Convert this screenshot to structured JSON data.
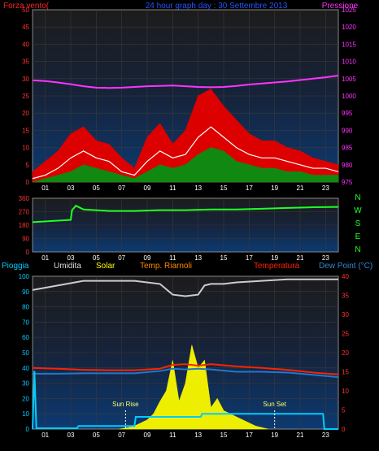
{
  "chart_data": [
    {
      "type": "line",
      "title": "24 hour graph day : 30 Settembre 2013",
      "x_ticks": [
        "01",
        "03",
        "05",
        "07",
        "09",
        "11",
        "13",
        "15",
        "17",
        "19",
        "21",
        "23"
      ],
      "left_axis": {
        "label": "Forza vento(",
        "ticks": [
          "0",
          "5",
          "10",
          "15",
          "20",
          "25",
          "30",
          "35",
          "40",
          "45",
          "50"
        ],
        "ylim": [
          0,
          50
        ]
      },
      "right_axis": {
        "label": "Pressione",
        "ticks": [
          "975",
          "980",
          "985",
          "990",
          "995",
          "1000",
          "1005",
          "1010",
          "1015",
          "1020",
          "1025"
        ],
        "ylim": [
          975,
          1025
        ]
      },
      "series": [
        {
          "name": "Pressione",
          "color": "#ff33ff",
          "axis": "right",
          "x": [
            0,
            1,
            2,
            3,
            4,
            5,
            6,
            7,
            8,
            9,
            10,
            11,
            12,
            13,
            14,
            15,
            16,
            17,
            18,
            19,
            20,
            21,
            22,
            23,
            24
          ],
          "y": [
            1004.5,
            1004.3,
            1003.9,
            1003.4,
            1002.8,
            1002.4,
            1002.3,
            1002.4,
            1002.6,
            1002.8,
            1002.9,
            1003.0,
            1002.8,
            1002.6,
            1002.5,
            1002.6,
            1002.9,
            1003.3,
            1003.6,
            1003.9,
            1004.2,
            1004.6,
            1005.0,
            1005.4,
            1005.9
          ]
        },
        {
          "color": "#ff0000",
          "axis": "left",
          "x": [
            0,
            1,
            2,
            3,
            4,
            5,
            6,
            7,
            8,
            9,
            10,
            11,
            12,
            13,
            14,
            15,
            16,
            17,
            18,
            19,
            20,
            21,
            22,
            23,
            24
          ],
          "y": [
            3,
            6,
            9,
            14,
            16,
            12,
            11,
            7,
            4,
            13,
            17,
            11,
            15,
            25,
            27,
            22,
            18,
            14,
            12,
            12,
            10,
            9,
            7,
            6,
            5
          ]
        },
        {
          "color": "#ffffff",
          "axis": "left",
          "x": [
            0,
            1,
            2,
            3,
            4,
            5,
            6,
            7,
            8,
            9,
            10,
            11,
            12,
            13,
            14,
            15,
            16,
            17,
            18,
            19,
            20,
            21,
            22,
            23,
            24
          ],
          "y": [
            1,
            2,
            4,
            7,
            9,
            7,
            6,
            3,
            2,
            6,
            9,
            7,
            8,
            13,
            16,
            13,
            10,
            8,
            7,
            7,
            6,
            5,
            4,
            4,
            3
          ]
        },
        {
          "color": "#00aa00",
          "axis": "left",
          "x": [
            0,
            1,
            2,
            3,
            4,
            5,
            6,
            7,
            8,
            9,
            10,
            11,
            12,
            13,
            14,
            15,
            16,
            17,
            18,
            19,
            20,
            21,
            22,
            23,
            24
          ],
          "y": [
            0,
            1,
            2,
            3,
            5,
            4,
            3,
            2,
            1,
            3,
            5,
            4,
            5,
            8,
            10,
            9,
            6,
            5,
            4,
            4,
            3,
            3,
            2,
            2,
            2
          ]
        }
      ]
    },
    {
      "type": "line",
      "x_ticks": [
        "01",
        "03",
        "05",
        "07",
        "09",
        "11",
        "13",
        "15",
        "17",
        "19",
        "21",
        "23"
      ],
      "left_axis": {
        "ticks": [
          "0",
          "90",
          "180",
          "270",
          "360"
        ],
        "ylim": [
          0,
          360
        ]
      },
      "right_labels": [
        "N",
        "W",
        "S",
        "E",
        "N"
      ],
      "series": [
        {
          "color": "#22ff22",
          "x": [
            0,
            3,
            3.1,
            3.4,
            4,
            6,
            8,
            10,
            12,
            14,
            16,
            18,
            20,
            22,
            24
          ],
          "y": [
            200,
            215,
            280,
            310,
            285,
            275,
            275,
            280,
            280,
            285,
            285,
            290,
            295,
            300,
            302
          ]
        }
      ]
    },
    {
      "type": "line",
      "legend": [
        "Pioggia",
        "Umidita",
        "Solar",
        "Temp. Riarnoli",
        "Temperatura",
        "Dew Point (°C)"
      ],
      "x_ticks": [
        "01",
        "03",
        "05",
        "07",
        "09",
        "11",
        "13",
        "15",
        "17",
        "19",
        "21",
        "23"
      ],
      "left_axis": {
        "ticks": [
          "0",
          "10",
          "20",
          "30",
          "40",
          "50",
          "60",
          "70",
          "80",
          "90",
          "100"
        ],
        "ylim": [
          0,
          100
        ]
      },
      "right_axis": {
        "ticks": [
          "0",
          "5",
          "10",
          "15",
          "20",
          "25",
          "30",
          "35",
          "40"
        ],
        "ylim": [
          0,
          40
        ]
      },
      "annotations": [
        {
          "text": "Sun Rise",
          "x": 7.3
        },
        {
          "text": "Sun Set",
          "x": 19.0
        }
      ],
      "series": [
        {
          "name": "Umidita",
          "color": "#cccccc",
          "axis": "left",
          "x": [
            0,
            2,
            4,
            6,
            8,
            10,
            11,
            12,
            13,
            13.5,
            14,
            15,
            16,
            18,
            20,
            22,
            24
          ],
          "y": [
            91,
            94,
            97,
            97,
            97,
            95,
            88,
            87,
            88,
            94,
            95,
            95,
            96,
            97,
            98,
            98,
            98
          ]
        },
        {
          "name": "Temperatura",
          "color": "#ff2200",
          "axis": "right",
          "x": [
            0,
            2,
            4,
            6,
            8,
            10,
            11,
            12,
            13,
            14,
            16,
            18,
            20,
            22,
            24
          ],
          "y": [
            16,
            15.8,
            15.5,
            15.4,
            15.4,
            15.8,
            16.8,
            17,
            16.6,
            17,
            16.4,
            16,
            15.5,
            14.8,
            14.3
          ]
        },
        {
          "name": "Dew Point (°C)",
          "color": "#2277cc",
          "axis": "right",
          "x": [
            0,
            2,
            4,
            6,
            8,
            10,
            11,
            12,
            13,
            14,
            16,
            18,
            20,
            22,
            24
          ],
          "y": [
            14.5,
            14.5,
            14.6,
            14.6,
            14.6,
            15.2,
            15.8,
            15.6,
            15.8,
            15.6,
            15,
            15,
            14.8,
            14.2,
            13.6
          ]
        },
        {
          "name": "Pioggia",
          "color": "#00ccff",
          "axis": "left",
          "x": [
            0,
            0.15,
            0.3,
            3.5,
            3.6,
            8,
            8.1,
            13.2,
            13.3,
            22.8,
            22.9,
            24
          ],
          "y": [
            0,
            38,
            0.5,
            0.5,
            2,
            2,
            8,
            8,
            10,
            10,
            0,
            0
          ]
        },
        {
          "name": "Solar",
          "color": "#ffff00",
          "axis": "left",
          "x": [
            6.8,
            7.5,
            8,
            8.5,
            9,
            9.5,
            10,
            10.5,
            11,
            11.5,
            12,
            12.5,
            13,
            13.5,
            14,
            14.5,
            15,
            15.5,
            16,
            16.5,
            17,
            17.5,
            18,
            18.5
          ],
          "y": [
            0,
            1,
            2,
            4,
            6,
            10,
            18,
            25,
            45,
            18,
            30,
            55,
            40,
            45,
            14,
            20,
            12,
            10,
            8,
            6,
            4,
            2,
            1,
            0
          ]
        }
      ]
    }
  ]
}
